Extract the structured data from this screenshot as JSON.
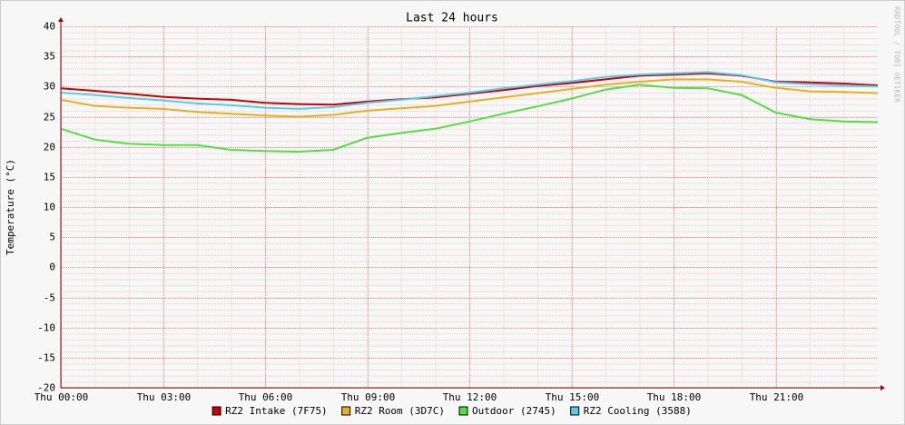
{
  "chart_data": {
    "type": "line",
    "title": "Last 24 hours",
    "y_label": "Temperature (°C)",
    "watermark": "RRDTOOL / TOBI OETIKER",
    "x": [
      0,
      1,
      2,
      3,
      4,
      5,
      6,
      7,
      8,
      9,
      10,
      11,
      12,
      13,
      14,
      15,
      16,
      17,
      18,
      19,
      20,
      21,
      22,
      23,
      24
    ],
    "xlim": [
      0,
      24
    ],
    "xticks": [
      {
        "value": 0,
        "label": "Thu 00:00"
      },
      {
        "value": 3,
        "label": "Thu 03:00"
      },
      {
        "value": 6,
        "label": "Thu 06:00"
      },
      {
        "value": 9,
        "label": "Thu 09:00"
      },
      {
        "value": 12,
        "label": "Thu 12:00"
      },
      {
        "value": 15,
        "label": "Thu 15:00"
      },
      {
        "value": 18,
        "label": "Thu 18:00"
      },
      {
        "value": 21,
        "label": "Thu 21:00"
      }
    ],
    "ylim": [
      -20,
      40
    ],
    "yticks": [
      -20,
      -15,
      -10,
      -5,
      0,
      5,
      10,
      15,
      20,
      25,
      30,
      35,
      40
    ],
    "grid": true,
    "series": [
      {
        "name": "RZ2 Intake (7F75)",
        "color": "#cc0000",
        "values": [
          29.7,
          29.3,
          28.8,
          28.3,
          28,
          27.8,
          27.3,
          27.1,
          27,
          27.5,
          27.9,
          28.2,
          28.8,
          29.4,
          30.1,
          30.6,
          31.2,
          31.8,
          32,
          32.2,
          31.8,
          30.8,
          30.7,
          30.5,
          30.2
        ]
      },
      {
        "name": "RZ2 Room (3D7C)",
        "color": "#e8b020",
        "values": [
          27.8,
          26.8,
          26.5,
          26.3,
          25.8,
          25.5,
          25.2,
          25,
          25.3,
          26,
          26.4,
          26.8,
          27.5,
          28.2,
          28.9,
          29.6,
          30.3,
          30.8,
          31.2,
          31.2,
          30.8,
          29.8,
          29.2,
          29.1,
          28.9
        ]
      },
      {
        "name": "Outdoor (2745)",
        "color": "#55dd44",
        "values": [
          23,
          21.2,
          20.5,
          20.3,
          20.3,
          19.5,
          19.3,
          19.2,
          19.5,
          21.5,
          22.3,
          23,
          24.2,
          25.5,
          26.7,
          28,
          29.5,
          30.3,
          29.8,
          29.7,
          28.6,
          25.7,
          24.6,
          24.2,
          24.1
        ]
      },
      {
        "name": "RZ2 Cooling (3588)",
        "color": "#55ccee",
        "values": [
          29,
          28.6,
          28.1,
          27.7,
          27.2,
          26.9,
          26.5,
          26.3,
          26.6,
          27.3,
          27.8,
          28.4,
          29,
          29.7,
          30.3,
          30.9,
          31.6,
          32,
          32.2,
          32.4,
          31.9,
          30.7,
          30.4,
          30.2,
          30
        ]
      }
    ]
  }
}
